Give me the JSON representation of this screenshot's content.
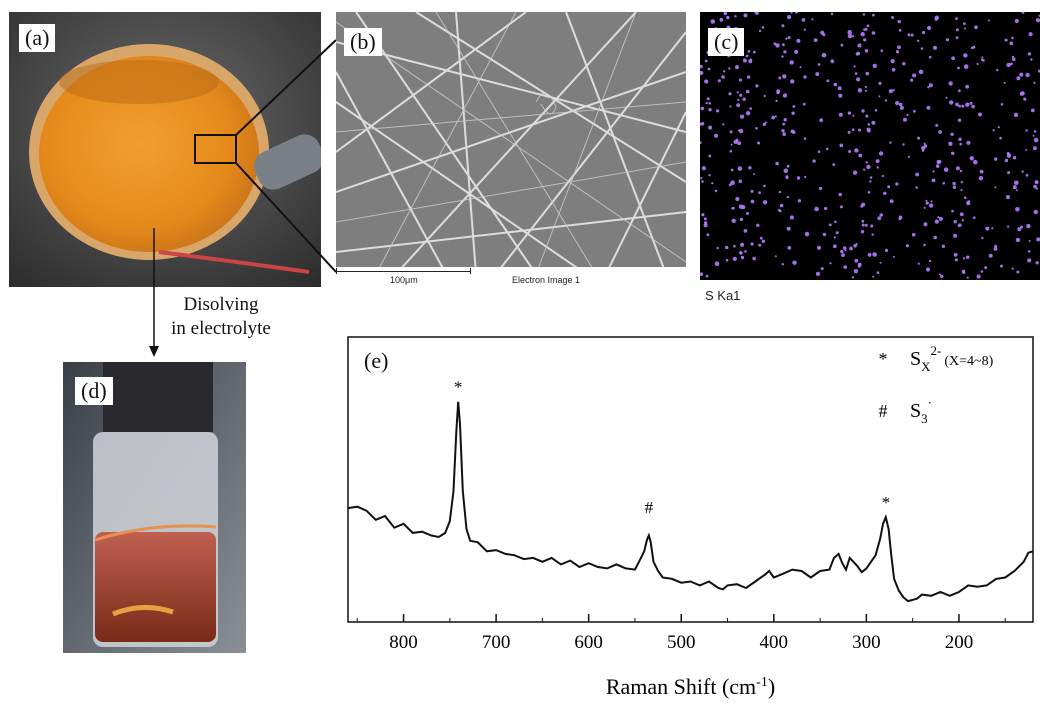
{
  "panels": {
    "a": {
      "label": "(a)"
    },
    "b": {
      "label": "(b)",
      "scale_bar": "100μm",
      "image_caption": "Electron Image 1"
    },
    "c": {
      "label": "(c)",
      "map_label": "S Ka1",
      "dot_color": "#b57bff"
    },
    "d": {
      "label": "(d)"
    },
    "e": {
      "label": "(e)"
    }
  },
  "arrow_caption": {
    "line1": "Disolving",
    "line2": "in electrolyte"
  },
  "chart_data": {
    "type": "line",
    "xlabel": "Raman Shift (cm",
    "xlabel_sup": "-1",
    "xlabel_end": ")",
    "ylabel": "",
    "xlim": [
      860,
      120
    ],
    "ylim": [
      0,
      100
    ],
    "xticks": [
      800,
      700,
      600,
      500,
      400,
      300,
      200
    ],
    "legend": [
      {
        "marker": "*",
        "species": "S",
        "sub": "X",
        "sup": "2-",
        "note": "(X=4~8)"
      },
      {
        "marker": "#",
        "species": "S",
        "sub": "3",
        "sup": "·",
        "note": ""
      }
    ],
    "peak_markers": [
      {
        "x": 741,
        "y": 79,
        "marker": "*"
      },
      {
        "x": 535,
        "y": 33,
        "marker": "#"
      },
      {
        "x": 279,
        "y": 35,
        "marker": "*"
      }
    ],
    "series": [
      {
        "x": [
          860,
          850,
          840,
          830,
          820,
          810,
          800,
          790,
          780,
          770,
          762,
          755,
          750,
          746,
          743,
          741,
          739,
          736,
          732,
          728,
          720,
          710,
          700,
          690,
          680,
          670,
          660,
          650,
          640,
          630,
          620,
          610,
          600,
          590,
          580,
          570,
          560,
          550,
          545,
          540,
          537,
          535,
          533,
          530,
          525,
          520,
          510,
          500,
          490,
          480,
          470,
          460,
          455,
          450,
          440,
          430,
          420,
          410,
          405,
          400,
          390,
          380,
          370,
          360,
          350,
          340,
          335,
          330,
          326,
          322,
          318,
          314,
          310,
          305,
          300,
          295,
          290,
          285,
          282,
          279,
          276,
          273,
          270,
          265,
          260,
          255,
          250,
          245,
          240,
          230,
          220,
          210,
          200,
          190,
          180,
          170,
          160,
          150,
          140,
          130,
          125,
          120
        ],
        "y": [
          38,
          39,
          37,
          34,
          35,
          31,
          32,
          29,
          29,
          28,
          27,
          29,
          33,
          45,
          67,
          79,
          70,
          45,
          30,
          26,
          25,
          22,
          22,
          21,
          20,
          19,
          19,
          18,
          19,
          17,
          18,
          16,
          17,
          16,
          15,
          17,
          15,
          15,
          18,
          22,
          26,
          28,
          25,
          18,
          14,
          12,
          11,
          10,
          10,
          9,
          10,
          8,
          7,
          9,
          9,
          8,
          10,
          13,
          14,
          12,
          13,
          15,
          14,
          12,
          14,
          15,
          19,
          21,
          17,
          15,
          19,
          18,
          16,
          14,
          15,
          18,
          20,
          27,
          32,
          35,
          30,
          20,
          11,
          7,
          4,
          3,
          3,
          4,
          5,
          5,
          6,
          5,
          6,
          9,
          8,
          9,
          11,
          12,
          14,
          18,
          21,
          22
        ]
      }
    ]
  }
}
